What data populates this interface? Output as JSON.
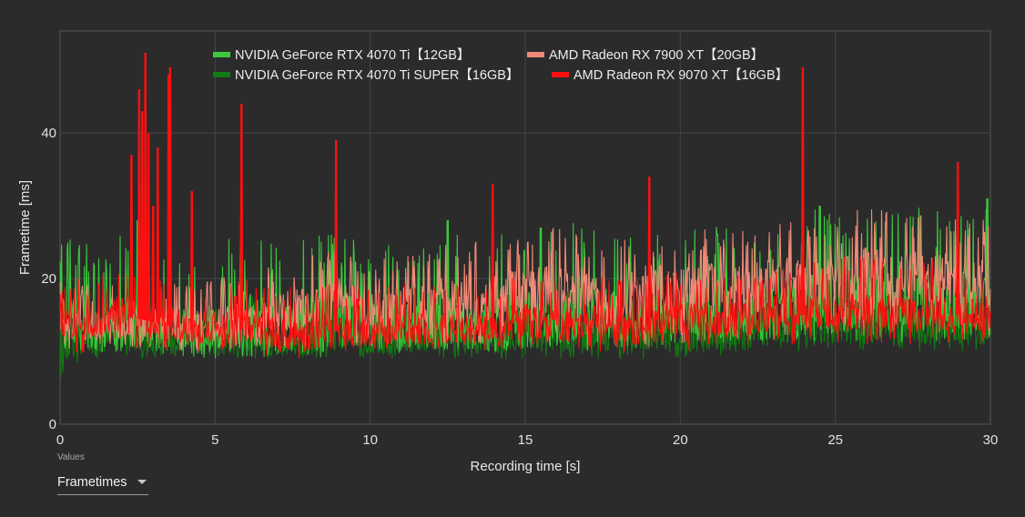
{
  "chart_data": {
    "type": "line",
    "title": "",
    "xlabel": "Recording time [s]",
    "ylabel": "Frametime [ms]",
    "xlim": [
      0,
      30
    ],
    "ylim": [
      0,
      54
    ],
    "x_ticks": [
      "0",
      "5",
      "10",
      "15",
      "20",
      "25",
      "30"
    ],
    "y_ticks": [
      "0",
      "20",
      "40"
    ],
    "grid": true,
    "legend_position": "top-center",
    "series": [
      {
        "name": "NVIDIA GeForce RTX 4070 Ti【12GB】",
        "color": "#3cc83c",
        "x": [
          0,
          1,
          2,
          3,
          4,
          5,
          6,
          7,
          8,
          9,
          10,
          11,
          12,
          13,
          14,
          15,
          16,
          17,
          18,
          19,
          20,
          21,
          22,
          23,
          24,
          25,
          26,
          27,
          28,
          29,
          30
        ],
        "values": [
          14,
          13,
          14,
          13,
          12,
          13,
          14,
          13,
          13,
          14,
          13,
          13,
          14,
          14,
          13,
          14,
          14,
          15,
          14,
          14,
          15,
          15,
          15,
          15,
          16,
          16,
          16,
          16,
          16,
          16,
          16
        ],
        "low": [
          9,
          9,
          10,
          10,
          9,
          9,
          9,
          9,
          9,
          9,
          10,
          10,
          10,
          10,
          10,
          10,
          10,
          10,
          10,
          10,
          10,
          11,
          11,
          11,
          11,
          11,
          11,
          11,
          11,
          11,
          11
        ],
        "high": [
          26,
          25,
          26,
          24,
          24,
          25,
          26,
          25,
          27,
          26,
          25,
          26,
          27,
          27,
          26,
          27,
          27,
          28,
          27,
          27,
          28,
          28,
          28,
          29,
          30,
          29,
          30,
          29,
          30,
          29,
          31
        ],
        "spikes": [
          [
            2.5,
            28
          ],
          [
            12.5,
            28
          ],
          [
            15.5,
            27
          ],
          [
            24.5,
            30
          ],
          [
            29.9,
            31
          ]
        ]
      },
      {
        "name": "NVIDIA GeForce RTX 4070 Ti SUPER【16GB】",
        "color": "#127a12",
        "x": [
          0,
          1,
          2,
          3,
          4,
          5,
          6,
          7,
          8,
          9,
          10,
          11,
          12,
          13,
          14,
          15,
          16,
          17,
          18,
          19,
          20,
          21,
          22,
          23,
          24,
          25,
          26,
          27,
          28,
          29,
          30
        ],
        "values": [
          11,
          11,
          12,
          11,
          11,
          11,
          11,
          11,
          11,
          12,
          11,
          11,
          12,
          12,
          11,
          12,
          12,
          12,
          12,
          12,
          12,
          12,
          12,
          13,
          13,
          13,
          13,
          13,
          13,
          13,
          13
        ],
        "low": [
          6,
          8,
          9,
          9,
          9,
          9,
          9,
          9,
          9,
          9,
          9,
          9,
          9,
          9,
          9,
          9,
          9,
          9,
          9,
          9,
          9,
          9,
          9,
          10,
          10,
          10,
          10,
          10,
          10,
          10,
          10
        ],
        "high": [
          18,
          17,
          18,
          17,
          17,
          17,
          18,
          17,
          18,
          18,
          17,
          18,
          18,
          18,
          17,
          18,
          18,
          19,
          18,
          18,
          19,
          19,
          19,
          19,
          20,
          20,
          20,
          20,
          20,
          20,
          20
        ],
        "spikes": [
          [
            0.8,
            14
          ]
        ]
      },
      {
        "name": "AMD Radeon RX 7900 XT【20GB】",
        "color": "#f08a78",
        "x": [
          0,
          1,
          2,
          3,
          4,
          5,
          6,
          7,
          8,
          9,
          10,
          11,
          12,
          13,
          14,
          15,
          16,
          17,
          18,
          19,
          20,
          21,
          22,
          23,
          24,
          25,
          26,
          27,
          28,
          29,
          30
        ],
        "values": [
          13,
          13,
          14,
          14,
          13,
          14,
          14,
          15,
          16,
          17,
          15,
          16,
          17,
          17,
          17,
          18,
          18,
          18,
          17,
          18,
          18,
          19,
          18,
          19,
          19,
          19,
          20,
          19,
          20,
          19,
          19
        ],
        "low": [
          10,
          10,
          11,
          10,
          10,
          10,
          10,
          10,
          11,
          11,
          11,
          11,
          11,
          11,
          11,
          11,
          11,
          12,
          11,
          11,
          11,
          12,
          12,
          12,
          12,
          12,
          12,
          12,
          12,
          12,
          12
        ],
        "high": [
          20,
          19,
          20,
          20,
          19,
          20,
          21,
          22,
          23,
          24,
          22,
          24,
          25,
          25,
          25,
          26,
          27,
          26,
          26,
          27,
          26,
          27,
          27,
          28,
          28,
          28,
          30,
          29,
          29,
          28,
          28
        ],
        "spikes": []
      },
      {
        "name": "AMD Radeon RX 9070 XT【16GB】",
        "color": "#ff1010",
        "x": [
          0,
          1,
          2,
          3,
          4,
          5,
          6,
          7,
          8,
          9,
          10,
          11,
          12,
          13,
          14,
          15,
          16,
          17,
          18,
          19,
          20,
          21,
          22,
          23,
          24,
          25,
          26,
          27,
          28,
          29,
          30
        ],
        "values": [
          14,
          14,
          15,
          14,
          13,
          13,
          13,
          12,
          12,
          13,
          12,
          13,
          13,
          13,
          13,
          14,
          13,
          14,
          13,
          13,
          14,
          14,
          14,
          15,
          15,
          15,
          15,
          15,
          15,
          15,
          15
        ],
        "low": [
          9,
          10,
          11,
          10,
          10,
          10,
          10,
          9,
          9,
          10,
          10,
          10,
          10,
          10,
          10,
          10,
          10,
          10,
          10,
          10,
          10,
          10,
          10,
          11,
          11,
          11,
          11,
          11,
          11,
          11,
          11
        ],
        "high": [
          20,
          20,
          22,
          21,
          20,
          20,
          20,
          19,
          19,
          20,
          19,
          20,
          20,
          20,
          20,
          21,
          20,
          21,
          20,
          20,
          21,
          21,
          21,
          22,
          22,
          23,
          23,
          22,
          23,
          22,
          22
        ],
        "spikes": [
          [
            2.3,
            37
          ],
          [
            2.55,
            46
          ],
          [
            2.65,
            43
          ],
          [
            2.75,
            51
          ],
          [
            2.85,
            40
          ],
          [
            3.0,
            30
          ],
          [
            3.15,
            38
          ],
          [
            3.5,
            48
          ],
          [
            3.55,
            49
          ],
          [
            4.25,
            32
          ],
          [
            5.85,
            44
          ],
          [
            8.9,
            39
          ],
          [
            13.95,
            33
          ],
          [
            19.0,
            34
          ],
          [
            23.95,
            49
          ],
          [
            28.95,
            36
          ]
        ]
      }
    ]
  },
  "controls": {
    "values_caption": "Values",
    "values_selected": "Frametimes"
  }
}
